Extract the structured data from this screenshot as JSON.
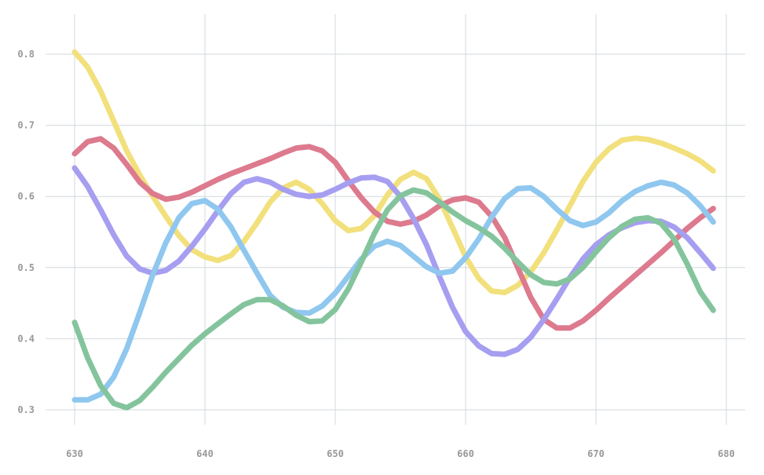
{
  "chart_data": {
    "type": "line",
    "title": "",
    "xlabel": "",
    "ylabel": "",
    "xlim": [
      630,
      680
    ],
    "ylim": [
      0.3,
      0.8
    ],
    "x_ticks": [
      630,
      640,
      650,
      660,
      670,
      680
    ],
    "y_ticks": [
      0.3,
      0.4,
      0.5,
      0.6,
      0.7,
      0.8
    ],
    "x_tick_labels": [
      "630",
      "640",
      "650",
      "660",
      "670",
      "680"
    ],
    "y_tick_labels": [
      "0.3",
      "0.4",
      "0.5",
      "0.6",
      "0.7",
      "0.8"
    ],
    "grid": true,
    "legend": "none",
    "x": [
      630,
      631,
      632,
      633,
      634,
      635,
      636,
      637,
      638,
      639,
      640,
      641,
      642,
      643,
      644,
      645,
      646,
      647,
      648,
      649,
      650,
      651,
      652,
      653,
      654,
      655,
      656,
      657,
      658,
      659,
      660,
      661,
      662,
      663,
      664,
      665,
      666,
      667,
      668,
      669,
      670,
      671,
      672,
      673,
      674,
      675,
      676,
      677,
      678,
      679
    ],
    "series": [
      {
        "color": "#f2e07c",
        "values": [
          0.803,
          0.782,
          0.748,
          0.706,
          0.664,
          0.63,
          0.6,
          0.572,
          0.545,
          0.525,
          0.515,
          0.51,
          0.517,
          0.537,
          0.563,
          0.592,
          0.612,
          0.62,
          0.61,
          0.59,
          0.566,
          0.552,
          0.555,
          0.573,
          0.602,
          0.624,
          0.634,
          0.625,
          0.596,
          0.556,
          0.515,
          0.485,
          0.467,
          0.465,
          0.475,
          0.494,
          0.521,
          0.553,
          0.587,
          0.621,
          0.648,
          0.667,
          0.679,
          0.682,
          0.68,
          0.675,
          0.668,
          0.66,
          0.65,
          0.636
        ]
      },
      {
        "color": "#dd7a8e",
        "values": [
          0.66,
          0.677,
          0.681,
          0.668,
          0.645,
          0.62,
          0.604,
          0.596,
          0.599,
          0.606,
          0.615,
          0.624,
          0.632,
          0.639,
          0.646,
          0.653,
          0.661,
          0.668,
          0.67,
          0.664,
          0.648,
          0.622,
          0.598,
          0.578,
          0.565,
          0.561,
          0.565,
          0.574,
          0.587,
          0.595,
          0.598,
          0.592,
          0.572,
          0.542,
          0.5,
          0.458,
          0.427,
          0.415,
          0.415,
          0.425,
          0.44,
          0.457,
          0.473,
          0.489,
          0.505,
          0.521,
          0.538,
          0.555,
          0.57,
          0.583
        ]
      },
      {
        "color": "#a69ef0",
        "values": [
          0.64,
          0.614,
          0.581,
          0.546,
          0.516,
          0.498,
          0.492,
          0.496,
          0.509,
          0.53,
          0.554,
          0.58,
          0.604,
          0.62,
          0.625,
          0.62,
          0.61,
          0.603,
          0.6,
          0.602,
          0.61,
          0.619,
          0.626,
          0.627,
          0.621,
          0.6,
          0.569,
          0.532,
          0.487,
          0.444,
          0.41,
          0.39,
          0.379,
          0.378,
          0.385,
          0.402,
          0.427,
          0.456,
          0.486,
          0.512,
          0.532,
          0.546,
          0.556,
          0.563,
          0.566,
          0.565,
          0.557,
          0.542,
          0.521,
          0.499
        ]
      },
      {
        "color": "#8fc7ef",
        "values": [
          0.314,
          0.314,
          0.322,
          0.346,
          0.386,
          0.437,
          0.49,
          0.535,
          0.57,
          0.59,
          0.594,
          0.582,
          0.557,
          0.524,
          0.492,
          0.461,
          0.444,
          0.437,
          0.436,
          0.446,
          0.464,
          0.488,
          0.512,
          0.53,
          0.537,
          0.531,
          0.516,
          0.501,
          0.492,
          0.495,
          0.514,
          0.54,
          0.571,
          0.597,
          0.611,
          0.612,
          0.6,
          0.582,
          0.566,
          0.559,
          0.564,
          0.577,
          0.594,
          0.607,
          0.615,
          0.62,
          0.616,
          0.605,
          0.587,
          0.564
        ]
      },
      {
        "color": "#84c49d",
        "values": [
          0.423,
          0.373,
          0.334,
          0.309,
          0.303,
          0.313,
          0.332,
          0.353,
          0.372,
          0.391,
          0.407,
          0.421,
          0.435,
          0.448,
          0.455,
          0.455,
          0.446,
          0.433,
          0.424,
          0.425,
          0.441,
          0.47,
          0.508,
          0.548,
          0.581,
          0.601,
          0.609,
          0.605,
          0.592,
          0.578,
          0.566,
          0.556,
          0.544,
          0.527,
          0.508,
          0.49,
          0.479,
          0.477,
          0.484,
          0.5,
          0.522,
          0.542,
          0.558,
          0.568,
          0.57,
          0.562,
          0.54,
          0.505,
          0.466,
          0.44
        ]
      }
    ]
  }
}
